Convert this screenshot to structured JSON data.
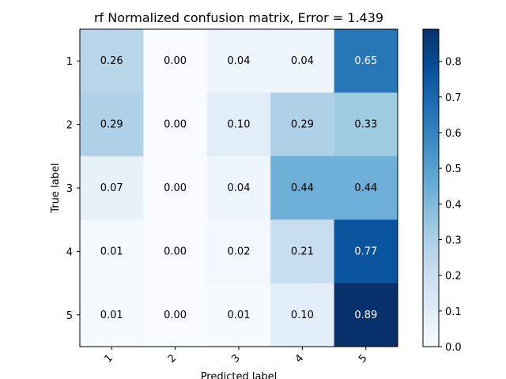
{
  "chart_data": {
    "type": "heatmap",
    "title": "rf Normalized confusion matrix, Error = 1.439",
    "xlabel": "Predicted label",
    "ylabel": "True label",
    "x_categories": [
      "1",
      "2",
      "3",
      "4",
      "5"
    ],
    "y_categories": [
      "1",
      "2",
      "3",
      "4",
      "5"
    ],
    "values": [
      [
        0.26,
        0.0,
        0.04,
        0.04,
        0.65
      ],
      [
        0.29,
        0.0,
        0.1,
        0.29,
        0.33
      ],
      [
        0.07,
        0.0,
        0.04,
        0.44,
        0.44
      ],
      [
        0.01,
        0.0,
        0.02,
        0.21,
        0.77
      ],
      [
        0.01,
        0.0,
        0.01,
        0.1,
        0.89
      ]
    ],
    "cell_labels": [
      [
        "0.26",
        "0.00",
        "0.04",
        "0.04",
        "0.65"
      ],
      [
        "0.29",
        "0.00",
        "0.10",
        "0.29",
        "0.33"
      ],
      [
        "0.07",
        "0.00",
        "0.04",
        "0.44",
        "0.44"
      ],
      [
        "0.01",
        "0.00",
        "0.02",
        "0.21",
        "0.77"
      ],
      [
        "0.01",
        "0.00",
        "0.01",
        "0.10",
        "0.89"
      ]
    ],
    "colormap": "Blues",
    "colorbar": {
      "range": [
        0.0,
        0.89
      ],
      "ticks": [
        0.0,
        0.1,
        0.2,
        0.3,
        0.4,
        0.5,
        0.6,
        0.7,
        0.8
      ],
      "tick_labels": [
        "0.0",
        "0.1",
        "0.2",
        "0.3",
        "0.4",
        "0.5",
        "0.6",
        "0.7",
        "0.8"
      ]
    },
    "grid": false,
    "x_tick_rotation": "45 degrees"
  }
}
